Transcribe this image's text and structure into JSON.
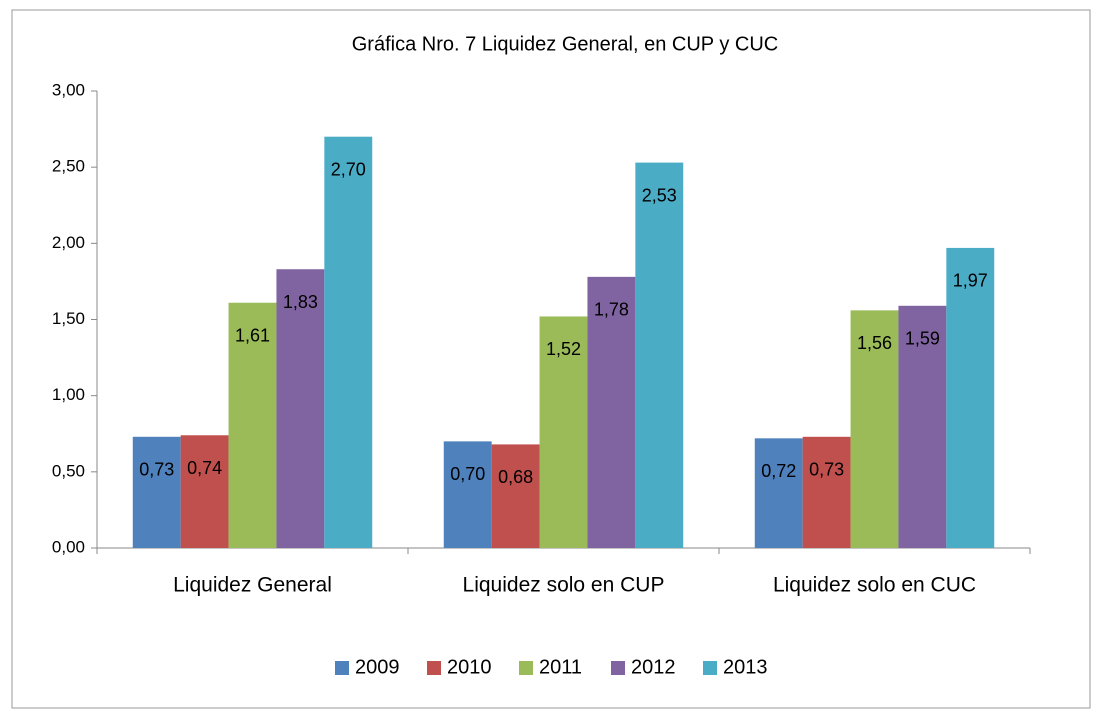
{
  "chart_data": {
    "type": "bar",
    "title": "Gráfica Nro. 7 Liquidez  General, en CUP y CUC",
    "categories": [
      "Liquidez General",
      "Liquidez solo en CUP",
      "Liquidez solo en CUC"
    ],
    "series": [
      {
        "name": "2009",
        "color": "#4f81bd",
        "values": [
          0.73,
          0.7,
          0.72
        ],
        "value_labels": [
          "0,73",
          "0,70",
          "0,72"
        ]
      },
      {
        "name": "2010",
        "color": "#c0504d",
        "values": [
          0.74,
          0.68,
          0.73
        ],
        "value_labels": [
          "0,74",
          "0,68",
          "0,73"
        ]
      },
      {
        "name": "2011",
        "color": "#9bbb59",
        "values": [
          1.61,
          1.52,
          1.56
        ],
        "value_labels": [
          "1,61",
          "1,52",
          "1,56"
        ]
      },
      {
        "name": "2012",
        "color": "#8064a2",
        "values": [
          1.83,
          1.78,
          1.59
        ],
        "value_labels": [
          "1,83",
          "1,78",
          "1,59"
        ]
      },
      {
        "name": "2013",
        "color": "#4bacc6",
        "values": [
          2.7,
          2.53,
          1.97
        ],
        "value_labels": [
          "2,70",
          "2,53",
          "1,97"
        ]
      }
    ],
    "ylim": [
      0,
      3
    ],
    "yticks": [
      {
        "value": 0,
        "label": "0,00"
      },
      {
        "value": 0.5,
        "label": "0,50"
      },
      {
        "value": 1,
        "label": "1,00"
      },
      {
        "value": 1.5,
        "label": "1,50"
      },
      {
        "value": 2,
        "label": "2,00"
      },
      {
        "value": 2.5,
        "label": "2,50"
      },
      {
        "value": 3,
        "label": "3,00"
      }
    ],
    "grid": false,
    "legend": "bottom"
  }
}
